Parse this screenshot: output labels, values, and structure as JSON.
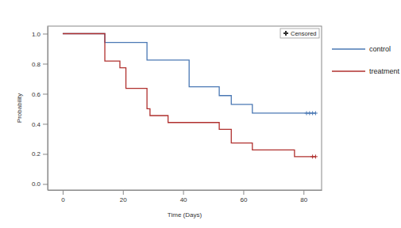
{
  "chart_data": {
    "type": "line",
    "line_style": "step",
    "xlabel": "Time (Days)",
    "ylabel": "Probability",
    "annotations": [
      "Censored"
    ],
    "legend": "right",
    "xlim": [
      -5,
      86
    ],
    "xticks": [
      0,
      20,
      40,
      60,
      80
    ],
    "ylim": [
      -0.04,
      1.05
    ],
    "yticks": [
      {
        "value": 0,
        "label": "0.0"
      },
      {
        "value": 0.2,
        "label": "0.2"
      },
      {
        "value": 0.4,
        "label": "0.4"
      },
      {
        "value": 0.6,
        "label": "0.6"
      },
      {
        "value": 0.8,
        "label": "0.8"
      },
      {
        "value": 1,
        "label": "1.0"
      }
    ],
    "series": [
      {
        "name": "control",
        "color": "#4a78b4",
        "x": [
          0,
          14,
          28,
          42,
          52,
          56,
          63,
          84
        ],
        "values": [
          1.0,
          0.941,
          0.824,
          0.647,
          0.588,
          0.529,
          0.471,
          0.471
        ],
        "censor_x": [
          81,
          82,
          83,
          84
        ],
        "censor_values": [
          0.471,
          0.471,
          0.471,
          0.471
        ]
      },
      {
        "name": "treatment",
        "color": "#b0302e",
        "x": [
          0,
          14,
          19,
          21,
          28,
          29,
          35,
          52,
          56,
          63,
          77,
          84
        ],
        "values": [
          1.0,
          0.818,
          0.773,
          0.636,
          0.5,
          0.455,
          0.409,
          0.364,
          0.273,
          0.227,
          0.182,
          0.182
        ],
        "censor_x": [
          83,
          84
        ],
        "censor_values": [
          0.182,
          0.182
        ]
      }
    ]
  }
}
